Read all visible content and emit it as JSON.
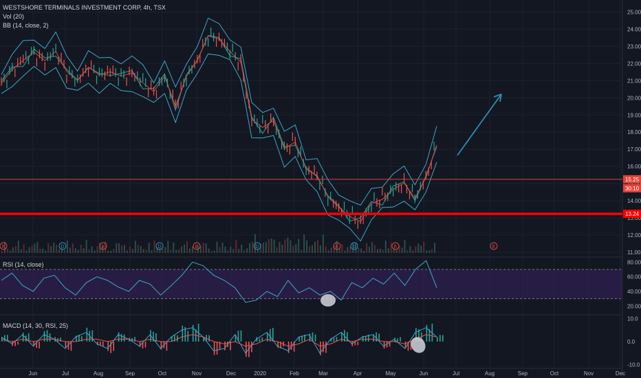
{
  "header": {
    "title": "WESTSHORE TERMINALS INVESTMENT CORP, 4h, TSX",
    "vol_label": "Vol (20)",
    "bb_label": "BB (14, close, 2)"
  },
  "rsi_label": "RSI (14, close)",
  "macd_label": "MACD (14, 30, RSI, 25)",
  "price_tags": {
    "last": "15.25",
    "countdown": "30:10",
    "support": "13.24"
  },
  "event_markers": [
    "E",
    "D",
    "E",
    "D",
    "E",
    "D",
    "E",
    "D",
    "E",
    "E"
  ],
  "colors": {
    "background": "#131722",
    "grid": "#1e222d",
    "price": "#e2433b",
    "bands": "#3fa7c9",
    "support": "#ff0000",
    "resistance": "#e2433b",
    "rsi_fill": "#2d1f4d",
    "arrow": "#2b8fb3",
    "macd_up": "#26a69a",
    "macd_down": "#ef5350"
  },
  "chart_data": [
    {
      "type": "line",
      "title": "WESTSHORE TERMINALS INVESTMENT CORP, 4h, TSX",
      "x_ticks": [
        "Jun",
        "Jul",
        "Aug",
        "Sep",
        "Oct",
        "Nov",
        "Dec",
        "2020",
        "Feb",
        "Mar",
        "Apr",
        "May",
        "Jun",
        "Jul",
        "Aug",
        "Sep",
        "Oct",
        "Nov",
        "Dec"
      ],
      "y_ticks": [
        "25.00",
        "24.00",
        "23.00",
        "22.00",
        "21.00",
        "20.00",
        "19.00",
        "18.00",
        "17.00",
        "16.00",
        "15.00",
        "14.00",
        "13.00",
        "12.00",
        "11.00"
      ],
      "ylim": [
        10.8,
        25.3
      ],
      "series": [
        {
          "name": "BB (14, close, 2)",
          "values": [
            20.8,
            21.6,
            22.3,
            22.6,
            22.1,
            22.8,
            21.5,
            21.0,
            21.8,
            21.3,
            21.6,
            21.2,
            21.4,
            21.0,
            20.3,
            21.2,
            19.6,
            21.2,
            22.2,
            23.6,
            23.4,
            22.8,
            22.0,
            18.7,
            18.4,
            18.6,
            17.0,
            17.5,
            15.8,
            15.5,
            14.2,
            13.6,
            13.2,
            12.7,
            13.8,
            14.2,
            14.6,
            15.0,
            14.2,
            15.3,
            17.3
          ]
        }
      ],
      "last_price": 15.25,
      "support_level": 13.24,
      "annotations": [
        "13.24",
        "15.25",
        "30:10"
      ]
    },
    {
      "type": "line",
      "title": "RSI (14, close)",
      "y_ticks": [
        "80.00",
        "60.00",
        "40.00",
        "20.00"
      ],
      "ylim": [
        10,
        85
      ],
      "band": [
        30,
        70
      ],
      "series": [
        {
          "name": "RSI (14, close)",
          "values": [
            55,
            65,
            48,
            40,
            58,
            62,
            45,
            35,
            52,
            60,
            55,
            46,
            40,
            55,
            50,
            35,
            48,
            62,
            80,
            75,
            62,
            55,
            45,
            25,
            28,
            40,
            33,
            55,
            38,
            45,
            35,
            40,
            28,
            52,
            45,
            58,
            50,
            65,
            48,
            70,
            82,
            45
          ]
        }
      ]
    },
    {
      "type": "bar",
      "title": "MACD (14, 30, RSI, 25)",
      "y_ticks": [
        "10.0",
        "0.0",
        "-10.0"
      ],
      "ylim": [
        -11,
        11
      ],
      "series": [
        {
          "name": "histogram",
          "values": [
            3,
            -2,
            4,
            -3,
            5,
            2,
            -4,
            3,
            6,
            -2,
            -5,
            4,
            2,
            -3,
            5,
            -4,
            3,
            7,
            8,
            3,
            -6,
            -4,
            5,
            -7,
            2,
            6,
            -3,
            -5,
            3,
            4,
            -6,
            2,
            5,
            -2,
            3,
            4,
            -3,
            2,
            -4,
            6,
            8,
            3
          ]
        },
        {
          "name": "MACD",
          "values": [
            2,
            -1,
            3,
            -2,
            3,
            1,
            -3,
            2,
            4,
            -1,
            -3,
            3,
            1,
            -2,
            3,
            -3,
            2,
            5,
            6,
            2,
            -4,
            -3,
            3,
            -5,
            1,
            4,
            -2,
            -4,
            2,
            3,
            -5,
            1,
            4,
            -1,
            2,
            3,
            -2,
            1,
            -3,
            4,
            6,
            2
          ]
        },
        {
          "name": "Signal",
          "values": [
            1,
            0,
            1,
            0,
            1,
            1,
            0,
            0,
            1,
            1,
            0,
            1,
            1,
            0,
            1,
            0,
            0,
            2,
            3,
            2,
            0,
            -1,
            0,
            -2,
            -1,
            1,
            0,
            -2,
            -1,
            1,
            -2,
            -1,
            1,
            0,
            1,
            1,
            0,
            0,
            -1,
            1,
            3,
            2
          ]
        }
      ]
    }
  ]
}
